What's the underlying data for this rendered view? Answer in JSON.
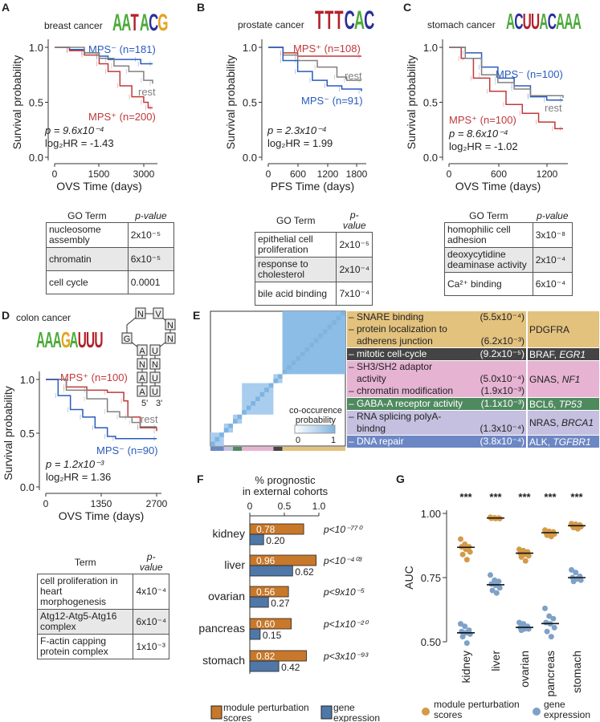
{
  "panel_labels": [
    "A",
    "B",
    "C",
    "D",
    "E",
    "F",
    "G"
  ],
  "colors": {
    "mps_plus": "#c0393b",
    "mps_minus": "#2a5bbd",
    "rest": "#808080",
    "module": "#c8782a",
    "gene": "#4f78a8",
    "module_dot": "#d49a48",
    "gene_dot": "#7ea1c8"
  },
  "motifs": {
    "A": {
      "title": "breast cancer",
      "logo": "AATACG"
    },
    "B": {
      "title": "prostate cancer",
      "logo": "TTTCAC"
    },
    "C": {
      "title": "stomach cancer",
      "logo": "ACUUACAAA"
    },
    "D": {
      "title": "colon cancer",
      "logo": "AAAGAUUU",
      "structure": [
        "N",
        "V",
        "N",
        "G",
        "N",
        "A",
        "U",
        "N",
        "N",
        "A",
        "U",
        "A",
        "U",
        "5'",
        "3'"
      ]
    }
  },
  "chart_data": [
    {
      "panel": "A",
      "type": "line",
      "ylabel": "Survival probability",
      "xlabel": "OVS Time (days)",
      "xticks": [
        "0",
        "1500",
        "3000"
      ],
      "xlim": [
        0,
        3300
      ],
      "yticks": [
        "0.0",
        "0.5",
        "1.0"
      ],
      "ylim": [
        0,
        1
      ],
      "series": [
        {
          "name": "MPS⁻ (n=181)",
          "color": "#2a5bbd",
          "points": [
            [
              0,
              1
            ],
            [
              500,
              0.98
            ],
            [
              1000,
              0.95
            ],
            [
              1500,
              0.92
            ],
            [
              1800,
              0.89
            ],
            [
              2800,
              0.89
            ],
            [
              2900,
              0.85
            ],
            [
              3300,
              0.85
            ]
          ]
        },
        {
          "name": "MPS⁺ (n=200)",
          "color": "#c0393b",
          "points": [
            [
              0,
              1
            ],
            [
              500,
              0.97
            ],
            [
              1000,
              0.93
            ],
            [
              1500,
              0.85
            ],
            [
              1800,
              0.78
            ],
            [
              2200,
              0.65
            ],
            [
              2600,
              0.55
            ],
            [
              3000,
              0.5
            ],
            [
              3150,
              0.45
            ],
            [
              3300,
              0.45
            ]
          ]
        },
        {
          "name": "rest",
          "color": "#808080",
          "points": [
            [
              0,
              1
            ],
            [
              1000,
              0.95
            ],
            [
              1500,
              0.9
            ],
            [
              2000,
              0.83
            ],
            [
              2500,
              0.78
            ],
            [
              3000,
              0.7
            ],
            [
              3300,
              0.67
            ]
          ]
        }
      ],
      "p": "p = 9.6x10⁻⁴",
      "hr": "log₂HR = -1.43",
      "table": {
        "headers": [
          "GO Term",
          "p-value"
        ],
        "rows": [
          [
            "nucleosome assembly",
            "2x10⁻⁵"
          ],
          [
            "chromatin",
            "6x10⁻⁵"
          ],
          [
            "cell cycle",
            "0.0001"
          ]
        ]
      }
    },
    {
      "panel": "B",
      "type": "line",
      "ylabel": "Survival probability",
      "xlabel": "PFS Time (days)",
      "xticks": [
        "0",
        "600",
        "1200",
        "1800"
      ],
      "xlim": [
        0,
        1900
      ],
      "yticks": [
        "0.0",
        "0.5",
        "1.0"
      ],
      "ylim": [
        0,
        1
      ],
      "series": [
        {
          "name": "MPS⁺ (n=108)",
          "color": "#c0393b",
          "points": [
            [
              0,
              1
            ],
            [
              300,
              0.95
            ],
            [
              600,
              0.92
            ],
            [
              1900,
              0.92
            ]
          ]
        },
        {
          "name": "rest",
          "color": "#808080",
          "points": [
            [
              0,
              1
            ],
            [
              300,
              0.93
            ],
            [
              600,
              0.88
            ],
            [
              1000,
              0.82
            ],
            [
              1400,
              0.73
            ],
            [
              1600,
              0.7
            ],
            [
              1900,
              0.7
            ]
          ]
        },
        {
          "name": "MPS⁻ (n=91)",
          "color": "#2a5bbd",
          "points": [
            [
              0,
              1
            ],
            [
              300,
              0.88
            ],
            [
              600,
              0.78
            ],
            [
              900,
              0.7
            ],
            [
              1200,
              0.65
            ],
            [
              1500,
              0.62
            ],
            [
              1900,
              0.6
            ]
          ]
        }
      ],
      "p": "p = 2.3x10⁻⁴",
      "hr": "log₂HR = 1.99",
      "table": {
        "headers": [
          "GO Term",
          "p-value"
        ],
        "rows": [
          [
            "epithelial cell proliferation",
            "2x10⁻⁵"
          ],
          [
            "response to cholesterol",
            "2x10⁻⁴"
          ],
          [
            "bile acid binding",
            "7x10⁻⁴"
          ]
        ]
      }
    },
    {
      "panel": "C",
      "type": "line",
      "ylabel": "Survival probability",
      "xlabel": "OVS Time (days)",
      "xticks": [
        "0",
        "600",
        "1200"
      ],
      "xlim": [
        0,
        1400
      ],
      "yticks": [
        "0.0",
        "0.5",
        "1.0"
      ],
      "ylim": [
        0,
        1
      ],
      "series": [
        {
          "name": "MPS⁻ (n=100)",
          "color": "#2a5bbd",
          "points": [
            [
              0,
              1
            ],
            [
              200,
              0.95
            ],
            [
              400,
              0.82
            ],
            [
              600,
              0.72
            ],
            [
              800,
              0.65
            ],
            [
              1000,
              0.55
            ],
            [
              1200,
              0.52
            ],
            [
              1400,
              0.52
            ]
          ]
        },
        {
          "name": "MPS⁺ (n=100)",
          "color": "#c0393b",
          "points": [
            [
              0,
              1
            ],
            [
              150,
              0.9
            ],
            [
              300,
              0.72
            ],
            [
              500,
              0.6
            ],
            [
              700,
              0.48
            ],
            [
              900,
              0.4
            ],
            [
              1100,
              0.32
            ],
            [
              1300,
              0.26
            ],
            [
              1400,
              0.26
            ]
          ]
        },
        {
          "name": "rest",
          "color": "#808080",
          "points": [
            [
              0,
              1
            ],
            [
              200,
              0.9
            ],
            [
              400,
              0.75
            ],
            [
              600,
              0.68
            ],
            [
              800,
              0.62
            ],
            [
              1000,
              0.56
            ],
            [
              1400,
              0.54
            ]
          ]
        }
      ],
      "p": "p = 8.6x10⁻⁴",
      "hr": "log₂HR = -1.02",
      "table": {
        "headers": [
          "GO Term",
          "p-value"
        ],
        "rows": [
          [
            "homophilic cell adhesion",
            "3x10⁻⁸"
          ],
          [
            "deoxycytidine deaminase activity",
            "2x10⁻⁴"
          ],
          [
            "Ca²⁺ binding",
            "6x10⁻⁴"
          ]
        ]
      }
    },
    {
      "panel": "D",
      "type": "line",
      "ylabel": "Survival probability",
      "xlabel": "OVS Time (days)",
      "xticks": [
        "0",
        "1350",
        "2700"
      ],
      "xlim": [
        0,
        2700
      ],
      "yticks": [
        "0.0",
        "0.5",
        "1.0"
      ],
      "ylim": [
        0,
        1
      ],
      "series": [
        {
          "name": "MPS⁺ (n=100)",
          "color": "#c0393b",
          "points": [
            [
              0,
              1
            ],
            [
              500,
              0.93
            ],
            [
              1000,
              0.9
            ],
            [
              1500,
              0.88
            ],
            [
              1900,
              0.8
            ],
            [
              2000,
              0.65
            ],
            [
              2300,
              0.55
            ],
            [
              2700,
              0.52
            ]
          ]
        },
        {
          "name": "rest",
          "color": "#808080",
          "points": [
            [
              0,
              1
            ],
            [
              500,
              0.9
            ],
            [
              1000,
              0.82
            ],
            [
              1500,
              0.7
            ],
            [
              1800,
              0.65
            ],
            [
              2100,
              0.6
            ],
            [
              2300,
              0.56
            ],
            [
              2700,
              0.56
            ]
          ]
        },
        {
          "name": "MPS⁻ (n=90)",
          "color": "#2a5bbd",
          "points": [
            [
              0,
              1
            ],
            [
              300,
              0.85
            ],
            [
              600,
              0.72
            ],
            [
              900,
              0.65
            ],
            [
              1200,
              0.55
            ],
            [
              1500,
              0.47
            ],
            [
              1700,
              0.45
            ],
            [
              2700,
              0.45
            ]
          ]
        }
      ],
      "p": "p = 1.2x10⁻³",
      "hr": "log₂HR = 1.36",
      "table": {
        "headers": [
          "Term",
          "p-value"
        ],
        "rows": [
          [
            "cell proliferation in heart morphogenesis",
            "4x10⁻⁴"
          ],
          [
            "Atg12-Atg5-Atg16 complex",
            "6x10⁻⁴"
          ],
          [
            "F-actin capping protein complex",
            "1x10⁻³"
          ]
        ]
      }
    },
    {
      "panel": "E",
      "type": "heatmap",
      "legend_title": "co-occurence probability",
      "legend_ticks": [
        "0",
        "1"
      ],
      "modules": [
        {
          "color": "#e3c27e",
          "text": "#222",
          "terms": [
            [
              "– SNARE binding",
              "(5.5x10⁻⁴)"
            ],
            [
              "– protein localization to",
              ""
            ],
            [
              "   adherens junction",
              "(6.2x10⁻³)"
            ]
          ],
          "genes": "PDGFRA",
          "genes_italic": "",
          "size": 13
        },
        {
          "color": "#444444",
          "text": "#fff",
          "terms": [
            [
              "– mitotic cell-cycle",
              "(9.2x10⁻⁵)"
            ]
          ],
          "genes": "BRAF, ",
          "genes_italic": "EGR1",
          "size": 1
        },
        {
          "color": "#e6b3d3",
          "text": "#222",
          "terms": [
            [
              "– SH3/SH2 adaptor",
              ""
            ],
            [
              "   activity",
              "(5.0x10⁻⁴)"
            ],
            [
              "– chromatin modification",
              "(1.9x10⁻³)"
            ]
          ],
          "genes": "GNAS, ",
          "genes_italic": "NF1",
          "size": 6
        },
        {
          "color": "#4f8a5f",
          "text": "#fff",
          "terms": [
            [
              "– GABA-A receptor activity",
              "(1.1x10⁻³)"
            ]
          ],
          "genes": "BCL6, ",
          "genes_italic": "TP53",
          "size": 1
        },
        {
          "color": "#c5c0e0",
          "text": "#222",
          "terms": [
            [
              "– RNA splicing polyA-",
              ""
            ],
            [
              "   bindng",
              "(1.3x10⁻⁴)"
            ]
          ],
          "genes": "NRAS, ",
          "genes_italic": "BRCA1",
          "size": 1
        },
        {
          "color": "#6d87c4",
          "text": "#fff",
          "terms": [
            [
              "– DNA repair",
              "(3.8x10⁻⁴)"
            ]
          ],
          "genes": "ALK, ",
          "genes_italic": "TGFBR1",
          "size": 2
        }
      ]
    },
    {
      "panel": "F",
      "type": "bar",
      "title": "% prognostic in external cohorts",
      "xticks": [
        "0",
        "0.5",
        "1.0"
      ],
      "xlim": [
        0,
        1
      ],
      "categories": [
        "kidney",
        "liver",
        "ovarian",
        "pancreas",
        "stomach"
      ],
      "series": [
        {
          "name": "module perturbation scores",
          "values": [
            0.78,
            0.96,
            0.56,
            0.6,
            0.82
          ]
        },
        {
          "name": "gene expression",
          "values": [
            0.2,
            0.62,
            0.27,
            0.15,
            0.42
          ]
        }
      ],
      "pvalues": [
        "p<10⁻⁷⁷⁰",
        "p<10⁻⁴⁰³",
        "p<9x10⁻⁵",
        "p<1x10⁻²⁰",
        "p<3x10⁻⁹³"
      ]
    },
    {
      "panel": "G",
      "type": "scatter",
      "ylabel": "AUC",
      "yticks": [
        "0.50",
        "0.75",
        "1.00"
      ],
      "ylim": [
        0.5,
        1.0
      ],
      "categories": [
        "kidney",
        "liver",
        "ovarian",
        "pancreas",
        "stomach"
      ],
      "significance": [
        "***",
        "***",
        "***",
        "***",
        "***"
      ],
      "series": [
        {
          "name": "module perturbation scores",
          "medians": [
            0.868,
            0.982,
            0.845,
            0.925,
            0.952
          ],
          "points": [
            [
              0.9,
              0.88,
              0.87,
              0.87,
              0.86,
              0.85,
              0.84,
              0.82
            ],
            [
              0.985,
              0.983,
              0.982,
              0.981,
              0.98,
              0.98
            ],
            [
              0.86,
              0.855,
              0.85,
              0.845,
              0.84,
              0.835,
              0.83,
              0.815
            ],
            [
              0.935,
              0.93,
              0.928,
              0.925,
              0.922,
              0.92,
              0.915,
              0.91
            ],
            [
              0.96,
              0.958,
              0.955,
              0.952,
              0.95,
              0.948,
              0.945,
              0.94
            ]
          ]
        },
        {
          "name": "gene expression",
          "medians": [
            0.535,
            0.722,
            0.556,
            0.571,
            0.75
          ],
          "points": [
            [
              0.57,
              0.56,
              0.545,
              0.54,
              0.535,
              0.53,
              0.52,
              0.495
            ],
            [
              0.76,
              0.74,
              0.735,
              0.725,
              0.72,
              0.71,
              0.7,
              0.69
            ],
            [
              0.575,
              0.57,
              0.56,
              0.555,
              0.55,
              0.55,
              0.545
            ],
            [
              0.63,
              0.6,
              0.59,
              0.575,
              0.57,
              0.555,
              0.54,
              0.52
            ],
            [
              0.78,
              0.77,
              0.755,
              0.75,
              0.745,
              0.74,
              0.735
            ]
          ]
        }
      ]
    }
  ]
}
